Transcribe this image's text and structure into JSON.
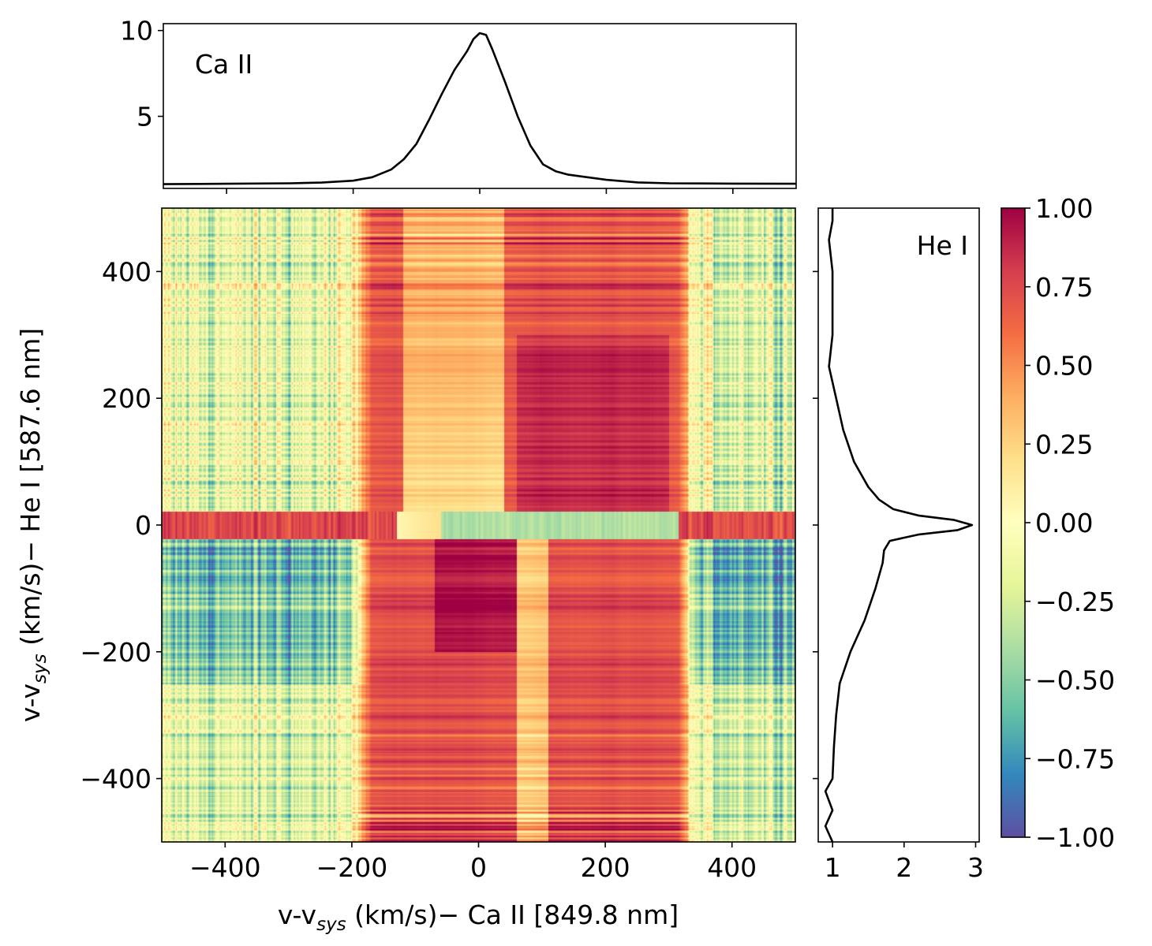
{
  "chart_data": [
    {
      "id": "top_profile",
      "type": "line",
      "annotation": "Ca II",
      "xlim": [
        -500,
        500
      ],
      "ylim": [
        0.8,
        10.4
      ],
      "yticks": [
        5,
        10
      ],
      "ytick_labels": [
        "5",
        "10"
      ],
      "xticks": [
        -400,
        -200,
        0,
        200,
        400
      ],
      "x": [
        -500,
        -400,
        -300,
        -250,
        -200,
        -170,
        -140,
        -120,
        -100,
        -80,
        -60,
        -40,
        -20,
        -10,
        0,
        10,
        20,
        40,
        60,
        80,
        100,
        120,
        140,
        170,
        200,
        250,
        300,
        400,
        500
      ],
      "y": [
        1.05,
        1.07,
        1.1,
        1.14,
        1.25,
        1.45,
        1.9,
        2.5,
        3.4,
        4.8,
        6.3,
        7.7,
        8.8,
        9.5,
        9.85,
        9.75,
        8.9,
        7.0,
        5.0,
        3.3,
        2.2,
        1.8,
        1.6,
        1.45,
        1.3,
        1.15,
        1.1,
        1.08,
        1.07
      ]
    },
    {
      "id": "right_profile",
      "type": "line",
      "annotation": "He I",
      "orientation": "vertical",
      "xlim": [
        0.8,
        3.05
      ],
      "ylim": [
        -500,
        500
      ],
      "xticks": [
        1,
        2,
        3
      ],
      "xtick_labels": [
        "1",
        "2",
        "3"
      ],
      "v": [
        -500,
        -475,
        -450,
        -420,
        -400,
        -350,
        -300,
        -250,
        -200,
        -150,
        -100,
        -60,
        -40,
        -25,
        -15,
        -8,
        0,
        8,
        15,
        25,
        40,
        60,
        100,
        150,
        200,
        250,
        300,
        350,
        400,
        450,
        480,
        500
      ],
      "flux": [
        1.0,
        0.9,
        1.0,
        0.9,
        1.0,
        1.02,
        1.05,
        1.1,
        1.25,
        1.45,
        1.6,
        1.7,
        1.72,
        1.8,
        2.2,
        2.75,
        2.95,
        2.7,
        2.2,
        1.85,
        1.65,
        1.5,
        1.3,
        1.15,
        1.05,
        0.95,
        1.0,
        1.0,
        1.0,
        0.95,
        1.0,
        1.0
      ]
    },
    {
      "id": "correlation_map",
      "type": "heatmap",
      "xlabel_parts": [
        "v-v",
        "sys",
        " (km/s)− Ca II [849.8 nm]"
      ],
      "ylabel_parts": [
        "v-v",
        "sys",
        " (km/s)− He I [587.6 nm]"
      ],
      "xlim": [
        -500,
        500
      ],
      "ylim": [
        -500,
        500
      ],
      "xticks": [
        -400,
        -200,
        0,
        200,
        400
      ],
      "xtick_labels": [
        "−400",
        "−200",
        "0",
        "200",
        "400"
      ],
      "yticks": [
        -400,
        -200,
        0,
        200,
        400
      ],
      "ytick_labels": [
        "−400",
        "−200",
        "0",
        "200",
        "400"
      ],
      "colormap": "Spectral_r",
      "vmin": -1.0,
      "vmax": 1.0,
      "colorbar_ticks": [
        1.0,
        0.75,
        0.5,
        0.25,
        0.0,
        -0.25,
        -0.5,
        -0.75,
        -1.0
      ],
      "colorbar_labels": [
        "1.00",
        "0.75",
        "0.50",
        "0.25",
        "0.00",
        "−0.25",
        "−0.50",
        "−0.75",
        "−1.00"
      ]
    }
  ],
  "colors": {
    "line": "#000000",
    "colormap_stops": [
      "#5e4fa2",
      "#3288bd",
      "#66c2a5",
      "#abdda4",
      "#e6f598",
      "#ffffbf",
      "#fee08b",
      "#fdae61",
      "#f46d43",
      "#d53e4f",
      "#9e0142"
    ]
  }
}
